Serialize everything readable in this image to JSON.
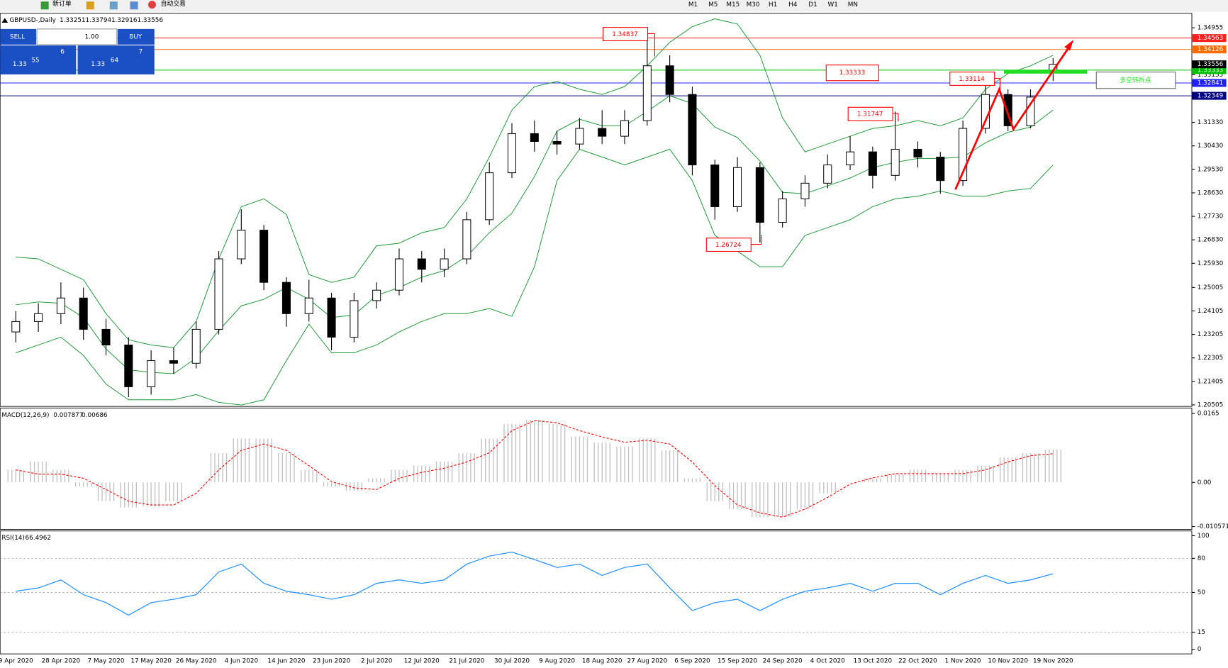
{
  "toolbar": {
    "new_order": "新订单",
    "auto_trading": "自动交易",
    "timeframes": [
      "M1",
      "M5",
      "M15",
      "M30",
      "H1",
      "H4",
      "D1",
      "W1",
      "MN"
    ]
  },
  "trade_panel": {
    "sell": "SELL",
    "buy": "BUY",
    "lot": "1.00",
    "bid_big": "1.33",
    "bid_pips": "55",
    "bid_frac": "6",
    "ask_big": "1.33",
    "ask_pips": "64",
    "ask_frac": "7"
  },
  "chart_data": [
    {
      "type": "candlestick",
      "title": "GBPUSD-,Daily",
      "categories": [
        "9 Apr 2020",
        null,
        "28 Apr 2020",
        null,
        "7 May 2020",
        null,
        "17 May 2020",
        null,
        "26 May 2020",
        null,
        "4 Jun 2020",
        null,
        "14 Jun 2020",
        null,
        "23 Jun 2020",
        null,
        "2 Jul 2020",
        null,
        "12 Jul 2020",
        null,
        "21 Jul 2020",
        null,
        "30 Jul 2020",
        null,
        "9 Aug 2020",
        null,
        "18 Aug 2020",
        null,
        "27 Aug 2020",
        null,
        "6 Sep 2020",
        null,
        "15 Sep 2020",
        null,
        "24 Sep 2020",
        null,
        "4 Oct 2020",
        null,
        "13 Oct 2020",
        null,
        "22 Oct 2020",
        null,
        "1 Nov 2020",
        null,
        "10 Nov 2020",
        null,
        "19 Nov 2020"
      ],
      "open": [
        1.233,
        1.237,
        1.24,
        1.246,
        1.234,
        1.228,
        1.212,
        1.222,
        1.221,
        1.234,
        1.261,
        1.272,
        1.252,
        1.24,
        1.246,
        1.231,
        1.245,
        1.249,
        1.261,
        1.257,
        1.261,
        1.276,
        1.294,
        1.309,
        1.306,
        1.305,
        1.311,
        1.308,
        1.314,
        1.335,
        1.324,
        1.297,
        1.281,
        1.296,
        1.275,
        1.284,
        1.29,
        1.297,
        1.302,
        1.293,
        1.303,
        1.3,
        1.291,
        1.311,
        1.324,
        1.312,
        1.33251
      ],
      "high": [
        1.241,
        1.244,
        1.252,
        1.25,
        1.238,
        1.231,
        1.226,
        1.227,
        1.237,
        1.264,
        1.28,
        1.274,
        1.254,
        1.253,
        1.248,
        1.248,
        1.252,
        1.265,
        1.264,
        1.265,
        1.279,
        1.298,
        1.313,
        1.314,
        1.31,
        1.315,
        1.318,
        1.318,
        1.34837,
        1.339,
        1.327,
        1.299,
        1.3,
        1.298,
        1.287,
        1.293,
        1.301,
        1.308,
        1.304,
        1.31747,
        1.306,
        1.302,
        1.314,
        1.33114,
        1.326,
        1.326,
        1.33794
      ],
      "low": [
        1.229,
        1.233,
        1.236,
        1.23,
        1.224,
        1.208,
        1.209,
        1.217,
        1.219,
        1.232,
        1.259,
        1.249,
        1.235,
        1.237,
        1.226,
        1.229,
        1.242,
        1.247,
        1.252,
        1.254,
        1.259,
        1.274,
        1.292,
        1.302,
        1.301,
        1.303,
        1.305,
        1.305,
        1.312,
        1.321,
        1.293,
        1.276,
        1.279,
        1.26724,
        1.273,
        1.281,
        1.288,
        1.295,
        1.288,
        1.291,
        1.296,
        1.286,
        1.289,
        1.309,
        1.31,
        1.311,
        1.32916
      ],
      "close": [
        1.237,
        1.24,
        1.246,
        1.234,
        1.228,
        1.212,
        1.222,
        1.221,
        1.234,
        1.261,
        1.272,
        1.252,
        1.24,
        1.246,
        1.231,
        1.245,
        1.249,
        1.261,
        1.257,
        1.261,
        1.276,
        1.294,
        1.309,
        1.306,
        1.305,
        1.311,
        1.308,
        1.314,
        1.335,
        1.324,
        1.297,
        1.281,
        1.296,
        1.275,
        1.284,
        1.29,
        1.297,
        1.302,
        1.293,
        1.303,
        1.3,
        1.291,
        1.311,
        1.324,
        1.312,
        1.323,
        1.33556
      ],
      "bollinger": {
        "color": "#1f9a3a",
        "upper": [
          1.2617,
          1.261,
          1.257,
          1.253,
          1.24,
          1.23,
          1.228,
          1.227,
          1.237,
          1.261,
          1.281,
          1.284,
          1.278,
          1.255,
          1.252,
          1.254,
          1.266,
          1.267,
          1.271,
          1.273,
          1.284,
          1.3,
          1.318,
          1.327,
          1.329,
          1.326,
          1.324,
          1.327,
          1.335,
          1.344,
          1.35,
          1.353,
          1.351,
          1.339,
          1.315,
          1.302,
          1.305,
          1.308,
          1.311,
          1.312,
          1.314,
          1.312,
          1.315,
          1.326,
          1.332,
          1.335,
          1.339
        ],
        "middle": [
          1.2434,
          1.2445,
          1.244,
          1.2385,
          1.2265,
          1.2185,
          1.2175,
          1.217,
          1.223,
          1.2335,
          1.243,
          1.2455,
          1.25,
          1.2455,
          1.2385,
          1.2395,
          1.247,
          1.25,
          1.254,
          1.2565,
          1.262,
          1.271,
          1.2785,
          1.2925,
          1.31,
          1.3145,
          1.312,
          1.312,
          1.3175,
          1.3235,
          1.3205,
          1.3115,
          1.3075,
          1.2985,
          1.2865,
          1.286,
          1.289,
          1.292,
          1.296,
          1.298,
          1.2995,
          1.2995,
          1.3,
          1.3055,
          1.3095,
          1.3115,
          1.318
        ],
        "lower": [
          1.225,
          1.228,
          1.231,
          1.224,
          1.213,
          1.207,
          1.207,
          1.207,
          1.209,
          1.206,
          1.205,
          1.207,
          1.222,
          1.236,
          1.225,
          1.225,
          1.228,
          1.233,
          1.237,
          1.24,
          1.24,
          1.242,
          1.239,
          1.258,
          1.291,
          1.303,
          1.3,
          1.297,
          1.3,
          1.303,
          1.291,
          1.27,
          1.264,
          1.258,
          1.258,
          1.27,
          1.273,
          1.276,
          1.281,
          1.284,
          1.285,
          1.287,
          1.285,
          1.285,
          1.287,
          1.288,
          1.297
        ]
      },
      "levels": [
        {
          "value": 1.34563,
          "color": "#ff2020"
        },
        {
          "value": 1.34126,
          "color": "#ff6a00"
        },
        {
          "value": 1.33333,
          "color": "#00c000"
        },
        {
          "value": 1.32841,
          "color": "#2020ff"
        },
        {
          "value": 1.32349,
          "color": "#000080"
        }
      ],
      "annotation": "多空转折点",
      "ylim": [
        1.20505,
        1.3548
      ],
      "yticks": [
        1.34955,
        1.33155,
        {
          "value": 1.3133,
          "label": "1.31330"
        },
        {
          "value": 1.3043,
          "label": "1.30430"
        },
        {
          "value": 1.2953,
          "label": "1.29530"
        },
        {
          "value": 1.2863,
          "label": "1.28630"
        },
        {
          "value": 1.2773,
          "label": "1.27730"
        },
        {
          "value": 1.2683,
          "label": "1.26830"
        },
        {
          "value": 1.2593,
          "label": "1.25930"
        },
        1.25005,
        1.24105,
        1.23205,
        1.22305,
        1.21405,
        1.20505
      ]
    },
    {
      "type": "macd",
      "title": "MACD(12,26,9)",
      "color": "#c0c0c0",
      "signal_color": "#ff0000",
      "histogram": [
        0.003,
        0.005,
        0.003,
        -0.001,
        -0.0045,
        -0.006,
        -0.0058,
        -0.0045,
        0,
        0.007,
        0.0105,
        0.0105,
        0.007,
        0.003,
        -0.001,
        -0.002,
        0.001,
        0.003,
        0.004,
        0.005,
        0.007,
        0.0105,
        0.014,
        0.015,
        0.014,
        0.011,
        0.0095,
        0.0086,
        0.0105,
        0.0077,
        0.001,
        -0.0045,
        -0.0064,
        -0.0083,
        -0.0083,
        -0.0064,
        -0.0026,
        0,
        0.001,
        0.002,
        0.003,
        0.002,
        0.003,
        0.004,
        0.006,
        0.007,
        0.007877
      ],
      "signal": [
        0.003,
        0.002,
        0.002,
        0.001,
        -0.0017,
        -0.0045,
        -0.0054,
        -0.0054,
        -0.0026,
        0.003,
        0.0077,
        0.0092,
        0.0077,
        0.004,
        0.0002,
        -0.0013,
        -0.0017,
        0.001,
        0.0024,
        0.0034,
        0.0049,
        0.0071,
        0.0124,
        0.0148,
        0.0143,
        0.0124,
        0.0109,
        0.0096,
        0.0101,
        0.0092,
        0.0049,
        -0.0008,
        -0.0054,
        -0.0073,
        -0.0083,
        -0.0064,
        -0.0036,
        -0.0004,
        0.0011,
        0.0021,
        0.0021,
        0.0021,
        0.0021,
        0.003,
        0.0049,
        0.0064,
        0.00686
      ],
      "ylim": [
        -0.01106,
        0.01763
      ],
      "yticks": [
        0.0165,
        {
          "value": 0,
          "label": "0.00"
        },
        -0.010571
      ]
    },
    {
      "type": "rsi",
      "title": "RSI(14)",
      "color": "#1e90ff",
      "values": [
        51,
        54,
        61,
        48,
        41,
        30,
        41,
        44,
        48,
        68,
        75,
        58,
        51,
        48,
        44,
        48,
        58,
        61,
        58,
        61,
        75,
        82,
        85.5,
        79,
        72,
        75,
        65,
        72,
        75,
        54,
        34,
        41,
        44,
        34,
        44,
        51,
        54,
        58,
        51,
        58,
        58,
        48,
        58,
        65,
        58,
        61,
        66.4962
      ],
      "ylim": [
        0,
        100
      ],
      "yticks": [
        100,
        80,
        50,
        15,
        0
      ]
    }
  ]
}
